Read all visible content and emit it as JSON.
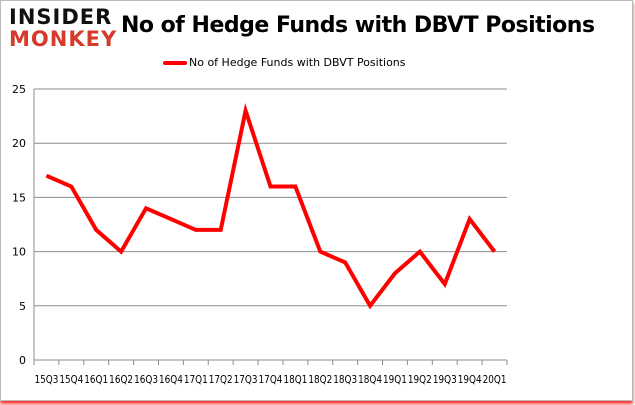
{
  "logo": {
    "line1": "INSIDER",
    "line2": "MONKEY"
  },
  "chart_data": {
    "type": "line",
    "title": "No of Hedge Funds with DBVT Positions",
    "xlabel": "",
    "ylabel": "",
    "categories": [
      "15Q3",
      "15Q4",
      "16Q1",
      "16Q2",
      "16Q3",
      "16Q4",
      "17Q1",
      "17Q2",
      "17Q3",
      "17Q4",
      "18Q1",
      "18Q2",
      "18Q3",
      "18Q4",
      "19Q1",
      "19Q2",
      "19Q3",
      "19Q4",
      "20Q1"
    ],
    "series": [
      {
        "name": "No of Hedge Funds with DBVT Positions",
        "color": "#ff0000",
        "values": [
          17,
          16,
          12,
          10,
          14,
          13,
          12,
          12,
          23,
          16,
          16,
          10,
          9,
          5,
          8,
          10,
          7,
          13,
          10
        ]
      }
    ],
    "ylim": [
      0,
      25
    ],
    "yticks": [
      0,
      5,
      10,
      15,
      20,
      25
    ],
    "grid": true,
    "legend": "top-center"
  }
}
